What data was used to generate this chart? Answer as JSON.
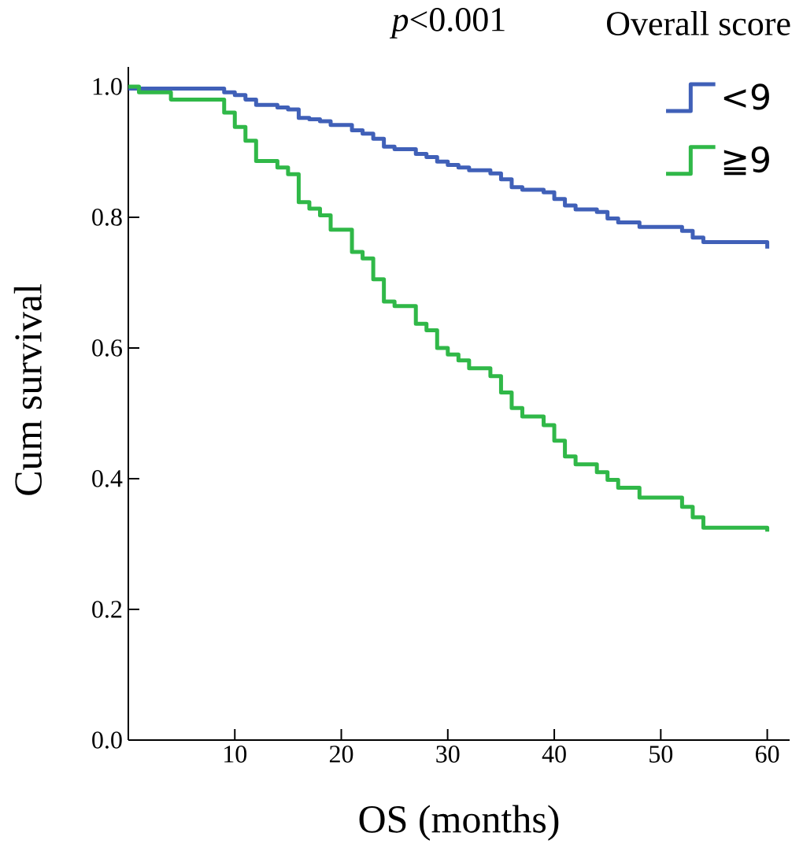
{
  "chart_data": {
    "type": "step",
    "xlabel": "OS (months)",
    "ylabel": "Cum survival",
    "legend_title": "Overall score",
    "annotations": [
      "*p*<0.001"
    ],
    "xlim": [
      0,
      62.1
    ],
    "ylim": [
      0,
      1.03
    ],
    "xticks": [
      10,
      20,
      30,
      40,
      50,
      60
    ],
    "yticks": [
      {
        "value": 0,
        "label": "0.0"
      },
      {
        "value": 0.2,
        "label": "0.2"
      },
      {
        "value": 0.4,
        "label": "0.4"
      },
      {
        "value": 0.6,
        "label": "0.6"
      },
      {
        "value": 0.8,
        "label": "0.8"
      },
      {
        "value": 1,
        "label": "1.0"
      }
    ],
    "legend": "top right",
    "series": [
      {
        "name": "<9",
        "color": "#4060b8",
        "x": [
          0,
          9,
          10,
          11,
          12,
          14,
          15,
          16,
          17,
          18,
          19,
          21,
          22,
          23,
          24,
          25,
          27,
          28,
          29,
          30,
          31,
          32,
          34,
          35,
          36,
          37,
          39,
          40,
          41,
          42,
          44,
          45,
          46,
          48,
          52,
          53,
          54,
          60
        ],
        "values": [
          0.997,
          0.991,
          0.987,
          0.98,
          0.972,
          0.968,
          0.965,
          0.952,
          0.95,
          0.947,
          0.941,
          0.933,
          0.928,
          0.92,
          0.908,
          0.904,
          0.897,
          0.892,
          0.885,
          0.88,
          0.876,
          0.872,
          0.867,
          0.858,
          0.846,
          0.842,
          0.838,
          0.828,
          0.818,
          0.812,
          0.808,
          0.798,
          0.792,
          0.785,
          0.779,
          0.769,
          0.762,
          0.752
        ]
      },
      {
        "name": "≧9",
        "color": "#30b848",
        "x": [
          0,
          1,
          4,
          9,
          10,
          11,
          12,
          14,
          15,
          16,
          17,
          18,
          19,
          21,
          22,
          23,
          24,
          25,
          27,
          28,
          29,
          30,
          31,
          32,
          34,
          35,
          36,
          37,
          39,
          40,
          41,
          42,
          44,
          45,
          46,
          48,
          52,
          53,
          54,
          60
        ],
        "values": [
          1.0,
          0.991,
          0.98,
          0.96,
          0.938,
          0.917,
          0.886,
          0.876,
          0.866,
          0.823,
          0.813,
          0.803,
          0.781,
          0.747,
          0.737,
          0.705,
          0.671,
          0.664,
          0.637,
          0.627,
          0.6,
          0.59,
          0.581,
          0.569,
          0.557,
          0.532,
          0.508,
          0.495,
          0.482,
          0.458,
          0.434,
          0.422,
          0.41,
          0.398,
          0.386,
          0.371,
          0.357,
          0.341,
          0.325,
          0.319
        ]
      }
    ]
  }
}
